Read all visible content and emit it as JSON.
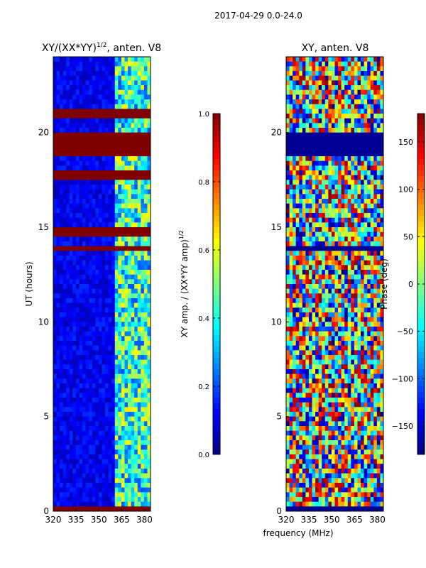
{
  "suptitle": "2017-04-29 0.0-24.0",
  "xlabel_shared": "frequency (MHz)",
  "colors": {
    "jet": [
      "#00007f",
      "#0000ff",
      "#007fff",
      "#00ffff",
      "#7fff7f",
      "#ffff00",
      "#ff7f00",
      "#ff0000",
      "#7f0000"
    ],
    "flag": "#7f0000",
    "line": "#000000"
  },
  "chart_data": [
    {
      "type": "heatmap",
      "title": "XY/(XX*YY)",
      "title_sup": "1/2",
      "title_tail": ", anten. V8",
      "ylabel": "UT (hours)",
      "x_range": [
        320,
        384
      ],
      "y_range": [
        0,
        24
      ],
      "x_ticks": [
        320,
        335,
        350,
        365,
        380
      ],
      "y_ticks": [
        0,
        5,
        10,
        15,
        20
      ],
      "colorbar": {
        "range": [
          0,
          1
        ],
        "ticks": [
          "0.0",
          "0.2",
          "0.4",
          "0.6",
          "0.8",
          "1.0"
        ],
        "label_main": "XY amp. / (XX*YY amp)",
        "label_sup": "1/2"
      },
      "flagged_bands_hours": [
        [
          18.7,
          20.0
        ],
        [
          17.6,
          18.0
        ],
        [
          20.8,
          21.2
        ],
        [
          13.8,
          14.1
        ],
        [
          14.6,
          14.9
        ],
        [
          0.0,
          0.2
        ]
      ],
      "bright_region_mhz": [
        361,
        384
      ]
    },
    {
      "type": "heatmap",
      "title": "XY, anten. V8",
      "ylabel": "",
      "x_range": [
        320,
        384
      ],
      "y_range": [
        0,
        24
      ],
      "x_ticks": [
        320,
        335,
        350,
        365,
        380
      ],
      "y_ticks": [
        0,
        5,
        10,
        15,
        20
      ],
      "colorbar": {
        "range": [
          -180,
          180
        ],
        "ticks": [
          "−150",
          "−100",
          "−50",
          "0",
          "50",
          "100",
          "150"
        ],
        "label": "Phase (deg)"
      },
      "flagged_bands_hours": [
        [
          18.7,
          20.0
        ],
        [
          13.8,
          14.1
        ],
        [
          0.0,
          0.2
        ]
      ]
    }
  ]
}
